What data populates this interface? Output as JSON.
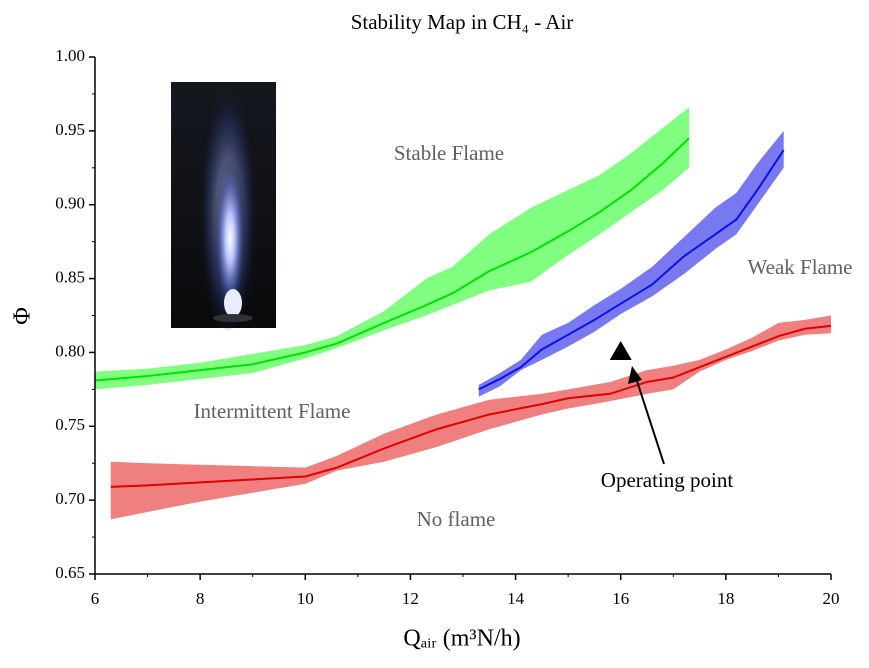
{
  "chart_data": {
    "type": "line",
    "title": "Stability Map in CH₄ - Air",
    "x_label": "Qₐᵢᵣ (m³N/h)",
    "y_label": "Φ",
    "xlim": [
      6,
      20
    ],
    "xticks": [
      6,
      8,
      10,
      12,
      14,
      16,
      18,
      20
    ],
    "ylim": [
      0.65,
      1.0
    ],
    "yticks": [
      0.65,
      {
        "value": 0.7,
        "label": "0.70"
      },
      0.75,
      {
        "value": 0.8,
        "label": "0.80"
      },
      0.85,
      {
        "value": 0.9,
        "label": "0.90"
      },
      0.95,
      {
        "value": 1.0,
        "label": "1.00"
      }
    ],
    "series": [
      {
        "color": "#00e000",
        "band_color": "#80ff80",
        "x": [
          6,
          7,
          8,
          9,
          10,
          10.6,
          11.5,
          12.3,
          12.8,
          13.5,
          14.3,
          15,
          15.6,
          16.2,
          16.8,
          17.3
        ],
        "values": [
          0.781,
          0.784,
          0.788,
          0.792,
          0.8,
          0.806,
          0.82,
          0.832,
          0.84,
          0.855,
          0.868,
          0.882,
          0.895,
          0.91,
          0.928,
          0.945
        ],
        "lower": [
          0.775,
          0.778,
          0.782,
          0.786,
          0.796,
          0.803,
          0.815,
          0.825,
          0.832,
          0.842,
          0.848,
          0.866,
          0.88,
          0.895,
          0.91,
          0.925
        ],
        "upper": [
          0.787,
          0.789,
          0.793,
          0.799,
          0.805,
          0.811,
          0.828,
          0.85,
          0.858,
          0.88,
          0.898,
          0.91,
          0.92,
          0.935,
          0.952,
          0.966
        ]
      },
      {
        "color": "#1010e0",
        "band_color": "#7878f0",
        "x": [
          13.3,
          13.7,
          14.1,
          14.5,
          15,
          15.5,
          16,
          16.6,
          17.2,
          17.8,
          18.2,
          18.6,
          19.1
        ],
        "values": [
          0.775,
          0.782,
          0.79,
          0.802,
          0.812,
          0.822,
          0.833,
          0.846,
          0.865,
          0.88,
          0.89,
          0.91,
          0.937
        ],
        "lower": [
          0.77,
          0.777,
          0.788,
          0.795,
          0.804,
          0.814,
          0.826,
          0.838,
          0.853,
          0.87,
          0.88,
          0.9,
          0.925
        ],
        "upper": [
          0.778,
          0.786,
          0.795,
          0.812,
          0.82,
          0.832,
          0.843,
          0.858,
          0.878,
          0.898,
          0.908,
          0.928,
          0.95
        ]
      },
      {
        "color": "#e00000",
        "band_color": "#f08080",
        "x": [
          6.3,
          7,
          8,
          9,
          10,
          10.6,
          11.5,
          12.5,
          13.5,
          14.5,
          15,
          15.8,
          16.5,
          17,
          17.5,
          18,
          18.5,
          19,
          19.5,
          20
        ],
        "values": [
          0.709,
          0.71,
          0.712,
          0.714,
          0.716,
          0.722,
          0.735,
          0.748,
          0.758,
          0.765,
          0.769,
          0.772,
          0.78,
          0.783,
          0.79,
          0.797,
          0.804,
          0.811,
          0.816,
          0.818
        ],
        "lower": [
          0.687,
          0.692,
          0.699,
          0.705,
          0.711,
          0.72,
          0.726,
          0.736,
          0.748,
          0.758,
          0.762,
          0.767,
          0.772,
          0.775,
          0.787,
          0.795,
          0.801,
          0.808,
          0.812,
          0.813
        ],
        "upper": [
          0.726,
          0.725,
          0.724,
          0.723,
          0.722,
          0.73,
          0.745,
          0.758,
          0.768,
          0.772,
          0.775,
          0.78,
          0.788,
          0.791,
          0.795,
          0.802,
          0.81,
          0.82,
          0.822,
          0.825
        ]
      }
    ],
    "operating_point": {
      "x": 16,
      "y": 0.801,
      "label": "Operating point"
    },
    "annotations": [
      "Stable Flame",
      "Weak Flame",
      "Intermittent Flame",
      "No flame"
    ]
  }
}
